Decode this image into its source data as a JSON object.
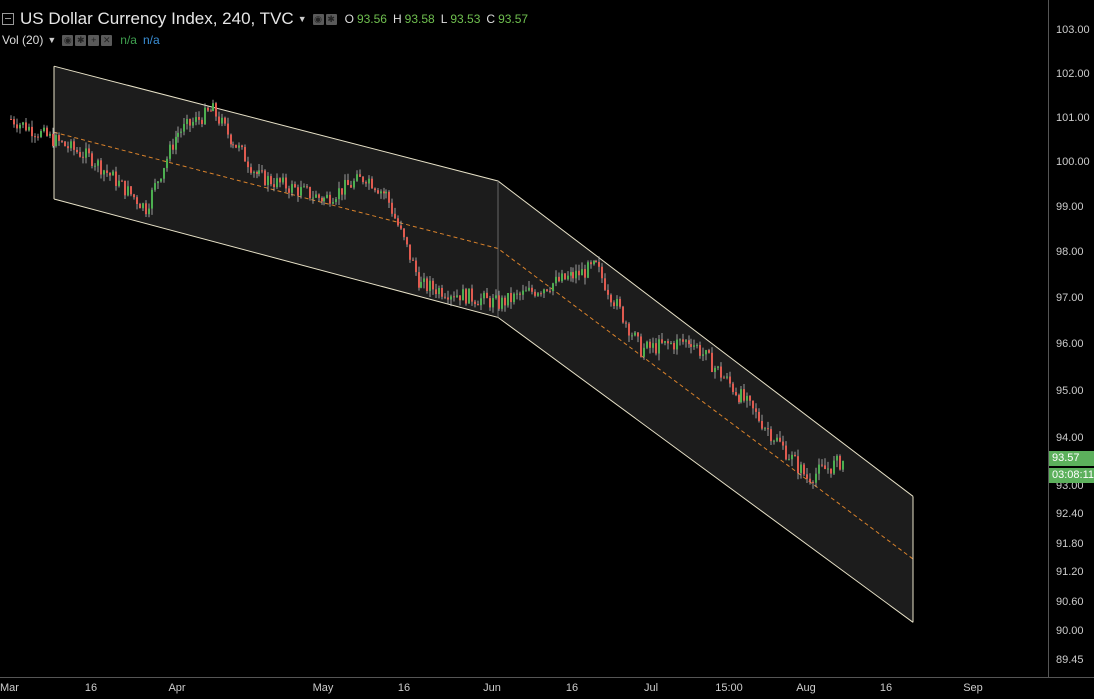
{
  "header": {
    "title": "US Dollar Currency Index, 240, TVC",
    "ohlc": [
      {
        "label": "O",
        "value": "93.56"
      },
      {
        "label": "H",
        "value": "93.58"
      },
      {
        "label": "L",
        "value": "93.53"
      },
      {
        "label": "C",
        "value": "93.57"
      }
    ]
  },
  "volume": {
    "title": "Vol (20)",
    "value1": "n/a",
    "value2": "n/a"
  },
  "price_axis": {
    "ticks": [
      "103.00",
      "102.00",
      "101.00",
      "100.00",
      "99.00",
      "98.00",
      "97.00",
      "96.00",
      "95.00",
      "94.00",
      "93.00",
      "92.40",
      "91.80",
      "91.20",
      "90.60",
      "90.00",
      "89.45"
    ],
    "last_price": "93.57",
    "countdown": "03:08:11"
  },
  "time_axis": {
    "ticks": [
      "Mar",
      "16",
      "Apr",
      "16",
      "May",
      "16",
      "Jun",
      "16",
      "Jul",
      "15:00",
      "Aug",
      "16",
      "Sep"
    ]
  },
  "colors": {
    "background": "#000000",
    "up_candle": "#4caf50",
    "down_candle": "#e05a4f",
    "channel_line": "#e8e2c8",
    "channel_fill": "#1c1c1c",
    "median_line": "#d9822b",
    "badge": "#5cb05c"
  },
  "chart_data": {
    "type": "candlestick",
    "instrument": "US Dollar Currency Index",
    "interval": "240",
    "source": "TVC",
    "x_range": [
      "Mar",
      "Sep"
    ],
    "y_range": [
      89.45,
      103.0
    ],
    "last": 93.57,
    "anchors": [
      {
        "date": "Mar",
        "close": 101.0
      },
      {
        "date": "Mar 16",
        "close": 100.1
      },
      {
        "date": "Mar 28",
        "close": 99.0
      },
      {
        "date": "Apr",
        "close": 100.7
      },
      {
        "date": "Apr 10",
        "close": 101.2
      },
      {
        "date": "Apr 16",
        "close": 100.5
      },
      {
        "date": "Apr 22",
        "close": 99.7
      },
      {
        "date": "May",
        "close": 99.2
      },
      {
        "date": "May 10",
        "close": 99.7
      },
      {
        "date": "May 16",
        "close": 99.3
      },
      {
        "date": "May 22",
        "close": 97.3
      },
      {
        "date": "Jun",
        "close": 96.9
      },
      {
        "date": "Jun 16",
        "close": 97.5
      },
      {
        "date": "Jun 22",
        "close": 97.7
      },
      {
        "date": "Jul",
        "close": 95.9
      },
      {
        "date": "Jul 10",
        "close": 96.1
      },
      {
        "date": "Jul 20",
        "close": 94.9
      },
      {
        "date": "Aug",
        "close": 93.2
      },
      {
        "date": "Aug 6",
        "close": 93.57
      }
    ],
    "channel": {
      "upper": [
        {
          "date": "Mar 9",
          "value": 102.2
        },
        {
          "date": "Jun",
          "value": 99.6
        },
        {
          "date": "Aug 20",
          "value": 92.8
        }
      ],
      "median": [
        {
          "date": "Mar 9",
          "value": 100.7
        },
        {
          "date": "Jun",
          "value": 98.1
        },
        {
          "date": "Aug 20",
          "value": 91.5
        }
      ],
      "lower": [
        {
          "date": "Mar 9",
          "value": 99.2
        },
        {
          "date": "Jun",
          "value": 96.6
        },
        {
          "date": "Aug 20",
          "value": 90.2
        }
      ]
    }
  }
}
